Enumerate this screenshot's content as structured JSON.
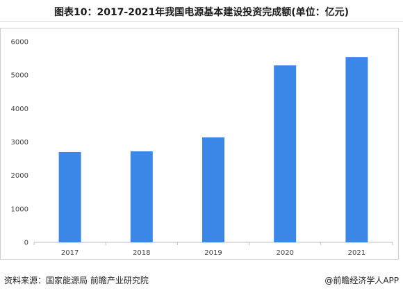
{
  "header": {
    "title": "图表10：2017-2021年我国电源基本建设投资完成额(单位：亿元)"
  },
  "footer": {
    "source": "资料来源：国家能源局 前瞻产业研究院",
    "brand": "@前瞻经济学人APP"
  },
  "colors": {
    "bar": "#3b87e8",
    "axis": "#bfbfbf"
  },
  "chart_data": {
    "type": "bar",
    "categories": [
      "2017",
      "2018",
      "2019",
      "2020",
      "2021"
    ],
    "values": [
      2700,
      2720,
      3140,
      5290,
      5540
    ],
    "ylim": [
      0,
      6000
    ],
    "yticks": [
      0,
      1000,
      2000,
      3000,
      4000,
      5000,
      6000
    ],
    "grid": false,
    "title": "",
    "xlabel": "",
    "ylabel": ""
  }
}
